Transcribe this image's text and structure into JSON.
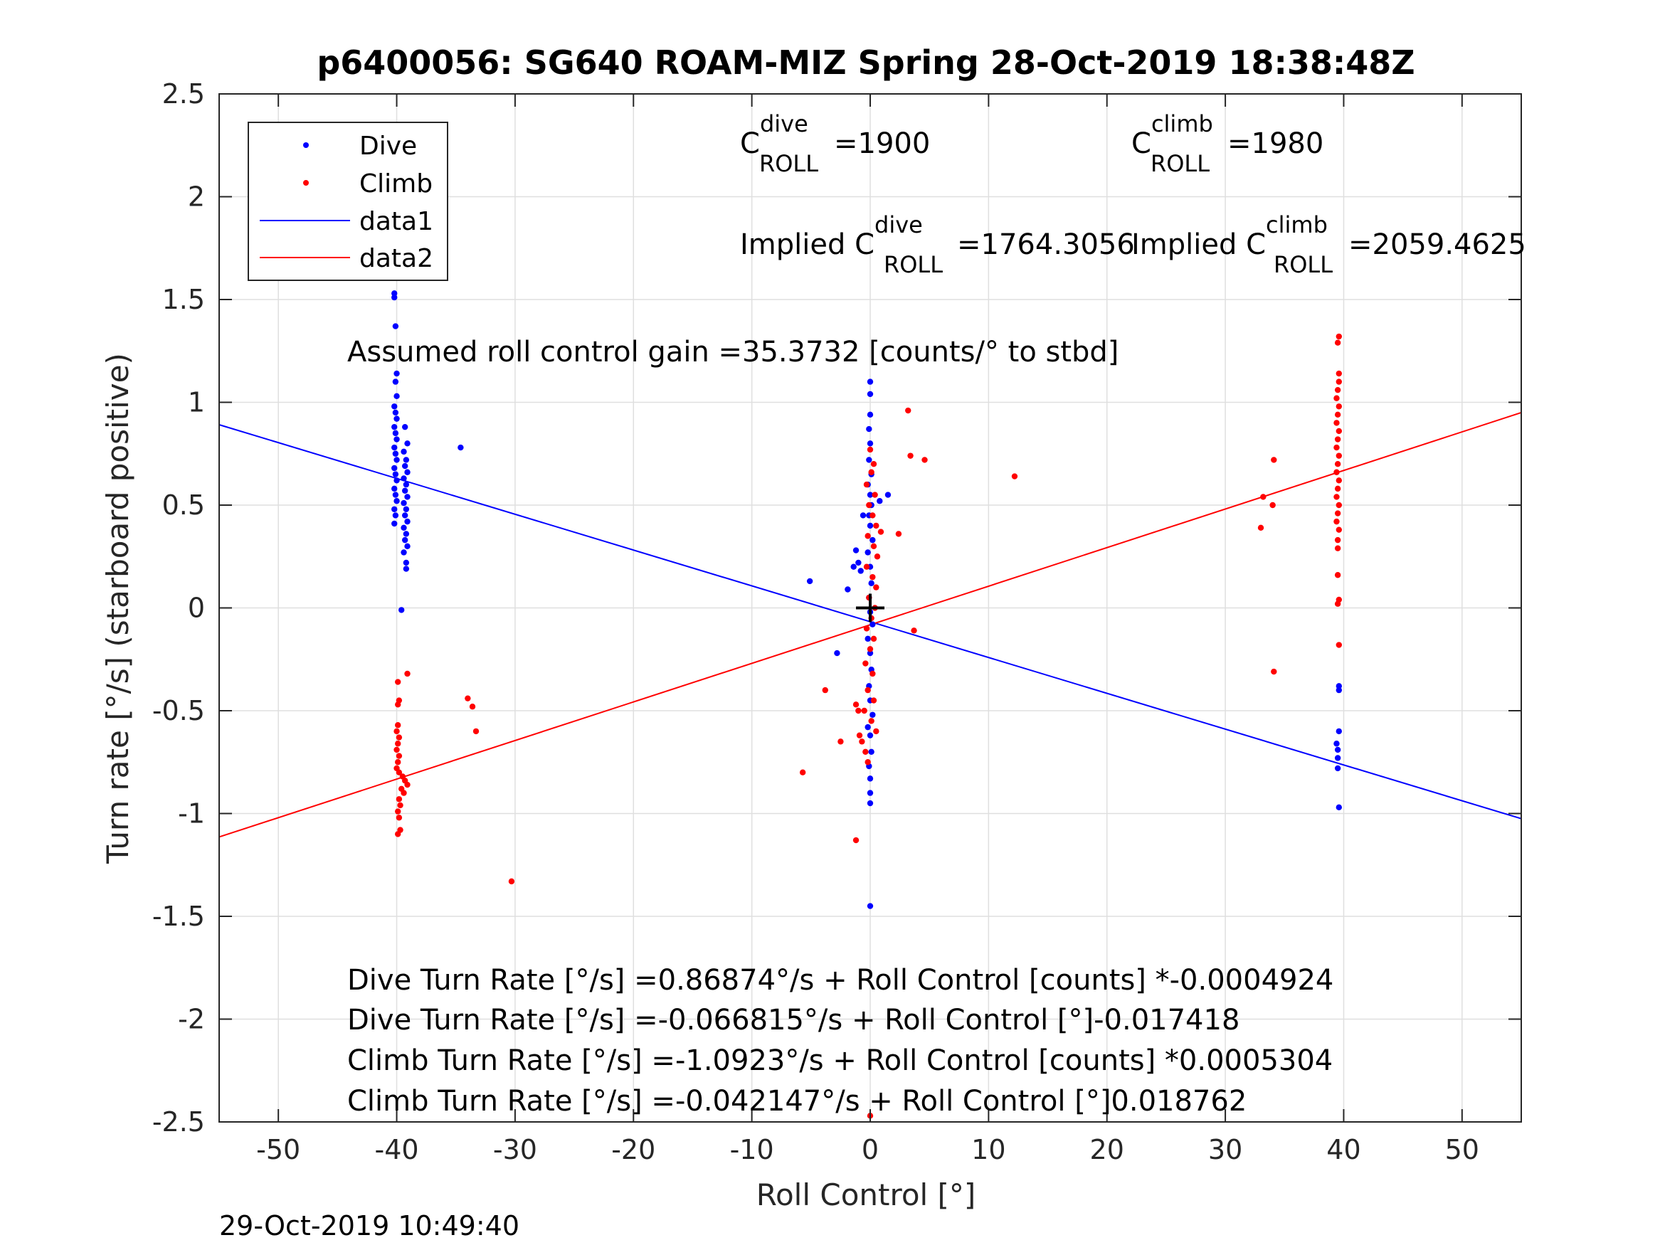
{
  "chart_data": {
    "type": "scatter",
    "title": "p6400056: SG640 ROAM-MIZ Spring 28-Oct-2019 18:38:48Z",
    "xlabel": "Roll Control [°]",
    "ylabel": "Turn rate [°/s] (starboard positive)",
    "xlim": [
      -55,
      55
    ],
    "ylim": [
      -2.5,
      2.5
    ],
    "xticks": [
      -50,
      -40,
      -30,
      -20,
      -10,
      0,
      10,
      20,
      30,
      40,
      50
    ],
    "yticks": [
      -2.5,
      -2,
      -1.5,
      -1,
      -0.5,
      0,
      0.5,
      1,
      1.5,
      2,
      2.5
    ],
    "xtick_labels": [
      "-50",
      "-40",
      "-30",
      "-20",
      "-10",
      "0",
      "10",
      "20",
      "30",
      "40",
      "50"
    ],
    "ytick_labels": [
      "-2.5",
      "-2",
      "-1.5",
      "-1",
      "-0.5",
      "0",
      "0.5",
      "1",
      "1.5",
      "2",
      "2.5"
    ],
    "grid": true,
    "legend_position": "top-left",
    "legend": [
      "Dive",
      "Climb",
      "data1",
      "data2"
    ],
    "colors": {
      "dive": "#0000ff",
      "climb": "#ff0000",
      "marker": "#000000"
    },
    "series": [
      {
        "name": "Dive",
        "kind": "points",
        "color": "#0000ff",
        "points": [
          [
            -40.2,
            1.53
          ],
          [
            -40.2,
            1.51
          ],
          [
            -40.1,
            1.37
          ],
          [
            -40.0,
            1.14
          ],
          [
            -40.1,
            1.1
          ],
          [
            -40.0,
            1.03
          ],
          [
            -40.2,
            0.98
          ],
          [
            -40.1,
            0.95
          ],
          [
            -40.0,
            0.92
          ],
          [
            -40.2,
            0.88
          ],
          [
            -40.1,
            0.85
          ],
          [
            -40.0,
            0.82
          ],
          [
            -40.2,
            0.78
          ],
          [
            -40.1,
            0.75
          ],
          [
            -40.0,
            0.72
          ],
          [
            -40.2,
            0.68
          ],
          [
            -40.1,
            0.65
          ],
          [
            -40.0,
            0.62
          ],
          [
            -40.2,
            0.58
          ],
          [
            -40.1,
            0.55
          ],
          [
            -40.0,
            0.52
          ],
          [
            -40.2,
            0.48
          ],
          [
            -40.1,
            0.45
          ],
          [
            -40.2,
            0.41
          ],
          [
            -39.3,
            0.88
          ],
          [
            -39.1,
            0.8
          ],
          [
            -39.4,
            0.76
          ],
          [
            -39.2,
            0.72
          ],
          [
            -39.3,
            0.69
          ],
          [
            -39.1,
            0.66
          ],
          [
            -39.4,
            0.63
          ],
          [
            -39.2,
            0.6
          ],
          [
            -39.3,
            0.57
          ],
          [
            -39.1,
            0.54
          ],
          [
            -39.4,
            0.51
          ],
          [
            -39.2,
            0.48
          ],
          [
            -39.3,
            0.45
          ],
          [
            -39.1,
            0.42
          ],
          [
            -39.4,
            0.39
          ],
          [
            -39.2,
            0.36
          ],
          [
            -39.3,
            0.33
          ],
          [
            -39.1,
            0.3
          ],
          [
            -39.4,
            0.27
          ],
          [
            -39.2,
            0.22
          ],
          [
            -39.2,
            0.19
          ],
          [
            -39.6,
            -0.01
          ],
          [
            -34.6,
            0.78
          ],
          [
            0.0,
            1.1
          ],
          [
            0.0,
            1.04
          ],
          [
            0.0,
            0.94
          ],
          [
            -0.1,
            0.87
          ],
          [
            0.0,
            0.8
          ],
          [
            -0.1,
            0.72
          ],
          [
            0.1,
            0.65
          ],
          [
            -0.2,
            0.6
          ],
          [
            0.0,
            0.55
          ],
          [
            0.1,
            0.5
          ],
          [
            -0.1,
            0.45
          ],
          [
            0.0,
            0.4
          ],
          [
            0.2,
            0.33
          ],
          [
            -0.2,
            0.27
          ],
          [
            0.0,
            0.2
          ],
          [
            0.1,
            0.12
          ],
          [
            -0.1,
            0.05
          ],
          [
            0.0,
            -0.02
          ],
          [
            0.2,
            -0.08
          ],
          [
            -0.2,
            -0.15
          ],
          [
            0.0,
            -0.22
          ],
          [
            0.1,
            -0.3
          ],
          [
            -0.1,
            -0.38
          ],
          [
            0.0,
            -0.45
          ],
          [
            0.2,
            -0.52
          ],
          [
            -0.2,
            -0.58
          ],
          [
            0.0,
            -0.62
          ],
          [
            0.1,
            -0.7
          ],
          [
            -0.1,
            -0.77
          ],
          [
            0.0,
            -0.83
          ],
          [
            0.0,
            -0.9
          ],
          [
            0.0,
            -0.95
          ],
          [
            0.0,
            -1.45
          ],
          [
            1.5,
            0.55
          ],
          [
            0.8,
            0.52
          ],
          [
            -0.6,
            0.45
          ],
          [
            -1.2,
            0.28
          ],
          [
            -1.0,
            0.22
          ],
          [
            -0.8,
            0.18
          ],
          [
            -1.4,
            0.2
          ],
          [
            -1.9,
            0.09
          ],
          [
            -5.1,
            0.13
          ],
          [
            -2.8,
            -0.22
          ],
          [
            39.6,
            -0.38
          ],
          [
            39.6,
            -0.4
          ],
          [
            39.6,
            -0.6
          ],
          [
            39.4,
            -0.66
          ],
          [
            39.5,
            -0.69
          ],
          [
            39.5,
            -0.73
          ],
          [
            39.5,
            -0.78
          ],
          [
            39.6,
            -0.97
          ]
        ]
      },
      {
        "name": "Climb",
        "kind": "points",
        "color": "#ff0000",
        "points": [
          [
            -39.9,
            -0.36
          ],
          [
            -39.1,
            -0.32
          ],
          [
            -39.8,
            -0.45
          ],
          [
            -39.9,
            -0.47
          ],
          [
            -39.9,
            -0.57
          ],
          [
            -40.0,
            -0.6
          ],
          [
            -39.8,
            -0.63
          ],
          [
            -39.9,
            -0.66
          ],
          [
            -40.0,
            -0.69
          ],
          [
            -39.8,
            -0.72
          ],
          [
            -39.9,
            -0.75
          ],
          [
            -40.0,
            -0.78
          ],
          [
            -39.8,
            -0.8
          ],
          [
            -39.5,
            -0.82
          ],
          [
            -39.3,
            -0.84
          ],
          [
            -39.1,
            -0.86
          ],
          [
            -39.6,
            -0.88
          ],
          [
            -39.4,
            -0.9
          ],
          [
            -39.8,
            -0.93
          ],
          [
            -39.7,
            -0.96
          ],
          [
            -39.9,
            -0.99
          ],
          [
            -39.8,
            -1.02
          ],
          [
            -39.7,
            -1.08
          ],
          [
            -39.9,
            -1.1
          ],
          [
            -34.0,
            -0.44
          ],
          [
            -33.6,
            -0.48
          ],
          [
            -33.3,
            -0.6
          ],
          [
            -30.3,
            -1.33
          ],
          [
            0.0,
            0.77
          ],
          [
            0.3,
            0.7
          ],
          [
            0.1,
            0.66
          ],
          [
            -0.3,
            0.6
          ],
          [
            0.4,
            0.55
          ],
          [
            -0.1,
            0.5
          ],
          [
            0.2,
            0.45
          ],
          [
            0.5,
            0.4
          ],
          [
            -0.2,
            0.35
          ],
          [
            0.3,
            0.3
          ],
          [
            0.6,
            0.25
          ],
          [
            -0.3,
            0.2
          ],
          [
            0.2,
            0.15
          ],
          [
            0.5,
            0.1
          ],
          [
            -0.1,
            0.05
          ],
          [
            0.4,
            0.0
          ],
          [
            0.1,
            -0.05
          ],
          [
            -0.3,
            -0.1
          ],
          [
            0.3,
            -0.15
          ],
          [
            0.0,
            -0.2
          ],
          [
            -0.4,
            -0.27
          ],
          [
            0.2,
            -0.32
          ],
          [
            -0.2,
            -0.4
          ],
          [
            0.3,
            -0.45
          ],
          [
            -0.5,
            -0.5
          ],
          [
            0.1,
            -0.55
          ],
          [
            0.5,
            -0.6
          ],
          [
            -0.7,
            -0.65
          ],
          [
            -0.4,
            -0.7
          ],
          [
            -0.2,
            -0.75
          ],
          [
            -1.0,
            -0.5
          ],
          [
            -1.2,
            -0.47
          ],
          [
            -0.9,
            -0.62
          ],
          [
            -2.5,
            -0.65
          ],
          [
            -3.8,
            -0.4
          ],
          [
            -5.7,
            -0.8
          ],
          [
            -1.2,
            -1.13
          ],
          [
            0.0,
            -2.47
          ],
          [
            3.2,
            0.96
          ],
          [
            3.4,
            0.74
          ],
          [
            4.6,
            0.72
          ],
          [
            12.2,
            0.64
          ],
          [
            2.4,
            0.36
          ],
          [
            3.7,
            -0.11
          ],
          [
            0.9,
            0.37
          ],
          [
            33.0,
            0.39
          ],
          [
            33.2,
            0.54
          ],
          [
            34.0,
            0.5
          ],
          [
            34.1,
            0.72
          ],
          [
            34.1,
            -0.31
          ],
          [
            39.6,
            1.32
          ],
          [
            39.5,
            1.29
          ],
          [
            39.6,
            1.14
          ],
          [
            39.6,
            1.1
          ],
          [
            39.5,
            1.06
          ],
          [
            39.4,
            1.02
          ],
          [
            39.6,
            0.98
          ],
          [
            39.5,
            0.94
          ],
          [
            39.4,
            0.9
          ],
          [
            39.6,
            0.86
          ],
          [
            39.5,
            0.82
          ],
          [
            39.4,
            0.78
          ],
          [
            39.6,
            0.74
          ],
          [
            39.5,
            0.7
          ],
          [
            39.4,
            0.66
          ],
          [
            39.6,
            0.62
          ],
          [
            39.5,
            0.58
          ],
          [
            39.4,
            0.54
          ],
          [
            39.6,
            0.5
          ],
          [
            39.5,
            0.46
          ],
          [
            39.4,
            0.42
          ],
          [
            39.6,
            0.38
          ],
          [
            39.5,
            0.33
          ],
          [
            39.5,
            0.29
          ],
          [
            39.5,
            0.16
          ],
          [
            39.6,
            0.04
          ],
          [
            39.5,
            0.02
          ],
          [
            39.6,
            -0.18
          ]
        ]
      },
      {
        "name": "data1",
        "kind": "line",
        "color": "#0000ff",
        "x": [
          -55,
          55
        ],
        "y": [
          0.891,
          -1.025
        ]
      },
      {
        "name": "data2",
        "kind": "line",
        "color": "#ff0000",
        "x": [
          -55,
          55
        ],
        "y": [
          -1.114,
          0.95
        ]
      }
    ],
    "zero_marker": {
      "x": 0,
      "y": 0,
      "symbol": "+"
    },
    "annotations": {
      "c_dive": {
        "base": "C",
        "sup": "dive",
        "sub": "ROLL",
        "value": "=1900"
      },
      "c_climb": {
        "base": "C",
        "sup": "climb",
        "sub": "ROLL",
        "value": "=1980"
      },
      "implied_dive": {
        "base": "Implied C",
        "sup": "dive",
        "sub": "ROLL",
        "value": "=1764.3056"
      },
      "implied_climb": {
        "base": "Implied C",
        "sup": "climb",
        "sub": "ROLL",
        "value": "=2059.4625"
      },
      "gain": "Assumed roll control gain =35.3732 [counts/° to stbd]",
      "fits": [
        "Dive Turn Rate [°/s] =0.86874°/s + Roll Control [counts] *-0.0004924",
        "Dive Turn Rate [°/s] =-0.066815°/s + Roll Control [°]-0.017418",
        "Climb Turn Rate [°/s] =-1.0923°/s + Roll Control [counts] *0.0005304",
        "Climb Turn Rate [°/s] =-0.042147°/s + Roll Control [°]0.018762"
      ]
    }
  },
  "timestamp": "29-Oct-2019 10:49:40"
}
